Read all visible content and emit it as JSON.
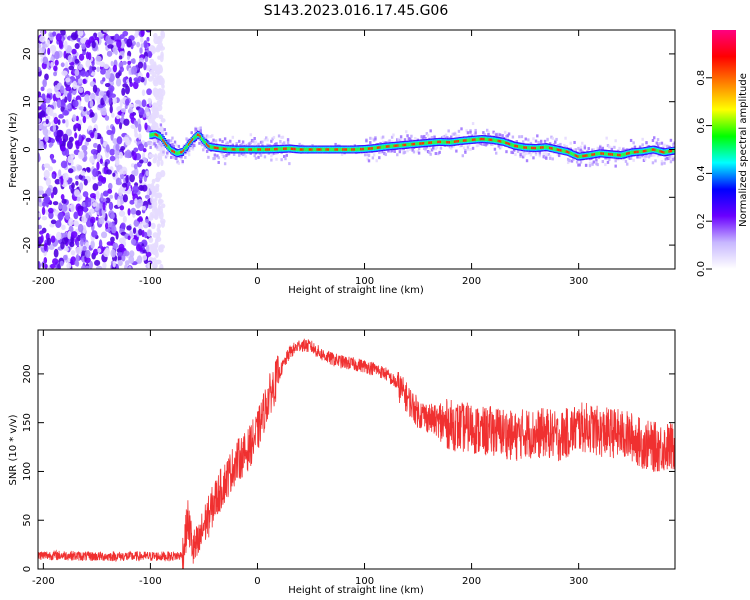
{
  "title": "S143.2023.016.17.45.G06",
  "chart_data": [
    {
      "type": "heatmap",
      "title": "",
      "xlabel": "Height of straight line (km)",
      "ylabel": "Frequency (Hz)",
      "xlim": [
        -205,
        390
      ],
      "ylim": [
        -25,
        25
      ],
      "xticks": [
        -200,
        -100,
        0,
        100,
        200,
        300
      ],
      "yticks": [
        -20,
        -10,
        0,
        10,
        20
      ],
      "noise_region_x": [
        -205,
        -100
      ],
      "ridge": {
        "x": [
          -100,
          -95,
          -90,
          -85,
          -80,
          -75,
          -70,
          -65,
          -60,
          -55,
          -50,
          -45,
          -40,
          -30,
          -20,
          -10,
          0,
          10,
          20,
          30,
          40,
          50,
          60,
          70,
          80,
          90,
          100,
          110,
          120,
          130,
          140,
          150,
          160,
          170,
          180,
          190,
          200,
          210,
          220,
          230,
          240,
          250,
          260,
          270,
          280,
          290,
          300,
          310,
          320,
          330,
          340,
          350,
          360,
          370,
          380,
          390
        ],
        "y": [
          3.0,
          3.2,
          2.6,
          1.0,
          -0.2,
          -0.8,
          -0.5,
          0.8,
          2.2,
          3.2,
          1.8,
          0.6,
          0.4,
          0.1,
          0.0,
          0.0,
          0.0,
          0.0,
          0.1,
          0.2,
          0.0,
          0.0,
          0.0,
          0.0,
          0.0,
          0.0,
          0.1,
          0.3,
          0.6,
          0.8,
          1.0,
          1.2,
          1.4,
          1.6,
          1.5,
          1.8,
          2.0,
          2.2,
          2.0,
          1.6,
          0.8,
          0.4,
          0.3,
          0.5,
          0.0,
          -0.5,
          -1.5,
          -1.2,
          -0.8,
          -1.0,
          -1.2,
          -0.6,
          -0.4,
          0.0,
          -0.6,
          -0.2
        ]
      },
      "colorbar": {
        "label": "Normalized spectral amplitude",
        "ticks": [
          0.0,
          0.2,
          0.4,
          0.6,
          0.8
        ],
        "range": [
          0,
          1
        ],
        "colors": [
          "#ffffff",
          "#c7b7ff",
          "#6a00ff",
          "#0000ff",
          "#00ffff",
          "#00ff00",
          "#ffff00",
          "#ff8000",
          "#ff0000",
          "#ff0080"
        ]
      }
    },
    {
      "type": "line",
      "title": "",
      "xlabel": "Height of straight line (km)",
      "ylabel": "SNR (10 * v/v)",
      "xlim": [
        -205,
        390
      ],
      "ylim": [
        0,
        245
      ],
      "xticks": [
        -200,
        -100,
        0,
        100,
        200,
        300
      ],
      "yticks": [
        0,
        50,
        100,
        150,
        200
      ],
      "color": "#f03030",
      "x": [
        -205,
        -180,
        -160,
        -140,
        -120,
        -100,
        -80,
        -70,
        -65,
        -60,
        -55,
        -50,
        -45,
        -40,
        -30,
        -20,
        -10,
        0,
        10,
        20,
        30,
        40,
        50,
        60,
        70,
        80,
        90,
        100,
        110,
        120,
        130,
        140,
        150,
        160,
        170,
        180,
        190,
        200,
        210,
        220,
        230,
        240,
        250,
        260,
        270,
        280,
        290,
        300,
        310,
        320,
        330,
        340,
        350,
        360,
        370,
        380,
        390
      ],
      "y": [
        14,
        14,
        13,
        13,
        13,
        13,
        13,
        14,
        50,
        20,
        25,
        45,
        55,
        70,
        90,
        110,
        120,
        140,
        175,
        200,
        222,
        230,
        228,
        220,
        215,
        212,
        210,
        208,
        205,
        200,
        190,
        175,
        160,
        155,
        150,
        148,
        145,
        145,
        140,
        142,
        140,
        135,
        140,
        138,
        140,
        135,
        140,
        145,
        145,
        140,
        140,
        138,
        135,
        128,
        125,
        125,
        125
      ]
    }
  ]
}
